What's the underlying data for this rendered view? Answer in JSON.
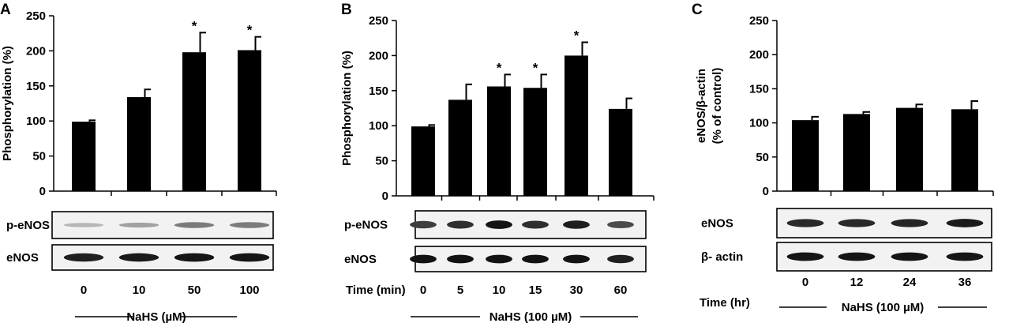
{
  "chart_data": [
    {
      "type": "bar",
      "panel": "A",
      "ylabel": "Phosphorylation (%)",
      "ylim": [
        0,
        250
      ],
      "yticks": [
        "0",
        "50",
        "100",
        "150",
        "200",
        "250"
      ],
      "categories": [
        "0",
        "10",
        "50",
        "100"
      ],
      "values": [
        99,
        134,
        198,
        201
      ],
      "errors": [
        2,
        11,
        28,
        19
      ],
      "significant": [
        false,
        false,
        true,
        true
      ],
      "star": "*",
      "blot_labels": [
        "p-eNOS",
        "eNOS"
      ],
      "blot_intensity": [
        [
          0.22,
          0.32,
          0.5,
          0.5
        ],
        [
          0.92,
          0.95,
          0.97,
          0.97
        ]
      ],
      "condition_label": "NaHS (µM)"
    },
    {
      "type": "bar",
      "panel": "B",
      "ylabel": "Phosphorylation (%)",
      "ylim": [
        0,
        250
      ],
      "yticks": [
        "0",
        "50",
        "100",
        "150",
        "200",
        "250"
      ],
      "categories": [
        "0",
        "5",
        "10",
        "15",
        "30",
        "60"
      ],
      "values": [
        99,
        137,
        156,
        154,
        200,
        124
      ],
      "errors": [
        2,
        22,
        17,
        19,
        19,
        15
      ],
      "significant": [
        false,
        false,
        true,
        true,
        true,
        false
      ],
      "star": "*",
      "blot_labels": [
        "p-eNOS",
        "eNOS"
      ],
      "blot_intensity": [
        [
          0.78,
          0.85,
          0.97,
          0.85,
          0.93,
          0.72
        ],
        [
          0.98,
          0.98,
          0.98,
          0.98,
          0.98,
          0.92
        ]
      ],
      "axis_prefix": "Time (min)",
      "condition_label": "NaHS (100 µM)"
    },
    {
      "type": "bar",
      "panel": "C",
      "ylabel": "eNOS/β-actin",
      "ylabel2": "(% of control)",
      "ylim": [
        0,
        250
      ],
      "yticks": [
        "0",
        "50",
        "100",
        "150",
        "200",
        "250"
      ],
      "categories": [
        "0",
        "12",
        "24",
        "36"
      ],
      "values": [
        104,
        113,
        122,
        120
      ],
      "errors": [
        5,
        3,
        5,
        12
      ],
      "significant": [
        false,
        false,
        false,
        false
      ],
      "star": "*",
      "blot_labels": [
        "eNOS",
        "β- actin"
      ],
      "blot_intensity": [
        [
          0.88,
          0.88,
          0.9,
          0.95
        ],
        [
          0.97,
          0.97,
          0.97,
          0.97
        ]
      ],
      "axis_prefix": "Time (hr)",
      "condition_label": "NaHS (100 µM)"
    }
  ]
}
